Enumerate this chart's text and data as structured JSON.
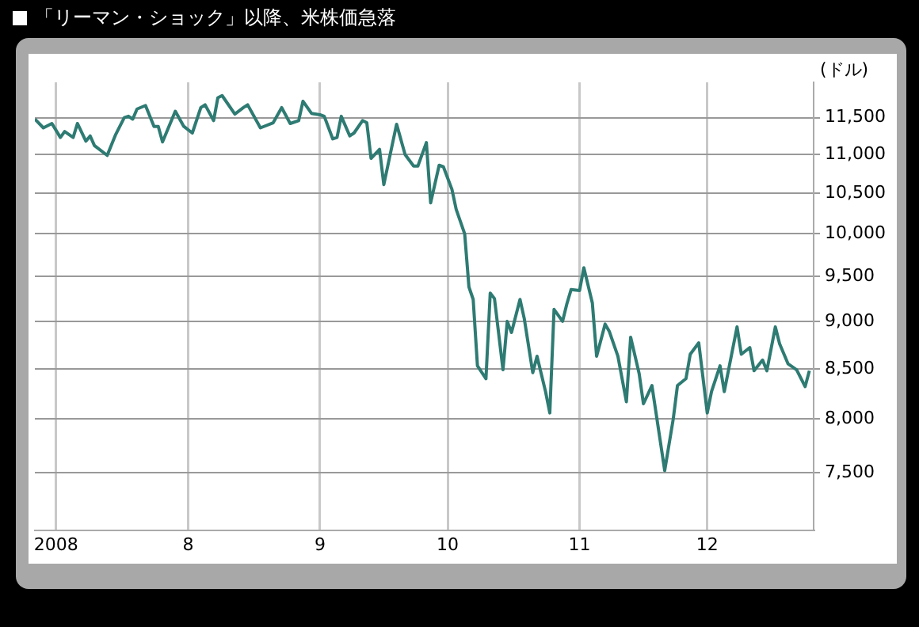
{
  "chart_data": {
    "type": "line",
    "title": "「リーマン・ショック」以降、米株価急落",
    "ylabel": "(ドル)",
    "x": [
      "2008-06-26",
      "2008-06-28",
      "2008-06-30",
      "2008-07-02",
      "2008-07-03",
      "2008-07-05",
      "2008-07-06",
      "2008-07-08",
      "2008-07-09",
      "2008-07-10",
      "2008-07-13",
      "2008-07-15",
      "2008-07-17",
      "2008-07-18",
      "2008-07-19",
      "2008-07-20",
      "2008-07-22",
      "2008-07-24",
      "2008-07-25",
      "2008-07-26",
      "2008-07-29",
      "2008-07-31",
      "2008-08-02",
      "2008-08-04",
      "2008-08-05",
      "2008-08-07",
      "2008-08-08",
      "2008-08-09",
      "2008-08-12",
      "2008-08-14",
      "2008-08-15",
      "2008-08-18",
      "2008-08-21",
      "2008-08-23",
      "2008-08-25",
      "2008-08-27",
      "2008-08-28",
      "2008-08-30",
      "2008-09-01",
      "2008-09-02",
      "2008-09-04",
      "2008-09-05",
      "2008-09-06",
      "2008-09-08",
      "2008-09-09",
      "2008-09-11",
      "2008-09-12",
      "2008-09-13",
      "2008-09-15",
      "2008-09-16",
      "2008-09-19",
      "2008-09-21",
      "2008-09-23",
      "2008-09-24",
      "2008-09-26",
      "2008-09-27",
      "2008-09-29",
      "2008-09-30",
      "2008-10-02",
      "2008-10-03",
      "2008-10-05",
      "2008-10-06",
      "2008-10-07",
      "2008-10-08",
      "2008-10-10",
      "2008-10-11",
      "2008-10-12",
      "2008-10-14",
      "2008-10-15",
      "2008-10-16",
      "2008-10-18",
      "2008-10-19",
      "2008-10-21",
      "2008-10-22",
      "2008-10-24",
      "2008-10-25",
      "2008-10-26",
      "2008-10-28",
      "2008-10-29",
      "2008-10-30",
      "2008-11-01",
      "2008-11-02",
      "2008-11-04",
      "2008-11-05",
      "2008-11-07",
      "2008-11-08",
      "2008-11-10",
      "2008-11-12",
      "2008-11-13",
      "2008-11-15",
      "2008-11-16",
      "2008-11-18",
      "2008-11-21",
      "2008-11-23",
      "2008-11-24",
      "2008-11-26",
      "2008-11-27",
      "2008-11-29",
      "2008-12-01",
      "2008-12-02",
      "2008-12-04",
      "2008-12-05",
      "2008-12-08",
      "2008-12-09",
      "2008-12-11",
      "2008-12-12",
      "2008-12-14",
      "2008-12-15",
      "2008-12-17",
      "2008-12-18",
      "2008-12-20",
      "2008-12-22",
      "2008-12-24",
      "2008-12-25"
    ],
    "series": [
      {
        "color": "#2e7b73",
        "values": [
          11480,
          11360,
          11420,
          11230,
          11310,
          11230,
          11420,
          11180,
          11250,
          11120,
          10990,
          11270,
          11500,
          11520,
          11480,
          11620,
          11670,
          11380,
          11380,
          11170,
          11590,
          11380,
          11290,
          11640,
          11680,
          11460,
          11780,
          11810,
          11550,
          11640,
          11680,
          11360,
          11430,
          11640,
          11420,
          11460,
          11730,
          11560,
          11540,
          11520,
          11210,
          11230,
          11520,
          11250,
          11290,
          11460,
          11430,
          10950,
          11070,
          10610,
          11410,
          11000,
          10850,
          10850,
          11160,
          10380,
          10860,
          10840,
          10550,
          10300,
          10000,
          9380,
          9240,
          8530,
          8400,
          9310,
          9250,
          8490,
          9000,
          8880,
          9240,
          9030,
          8460,
          8630,
          8270,
          8060,
          9130,
          9000,
          9190,
          9350,
          9340,
          9600,
          9200,
          8630,
          8970,
          8890,
          8630,
          8170,
          8830,
          8450,
          8150,
          8330,
          7520,
          8000,
          8330,
          8400,
          8650,
          8770,
          8060,
          8270,
          8530,
          8270,
          8940,
          8650,
          8720,
          8480,
          8590,
          8480,
          8940,
          8760,
          8550,
          8490,
          8320,
          8480
        ]
      }
    ],
    "xlim": [
      "2008-06-26",
      "2008-12-26"
    ],
    "xticks": [
      {
        "value": "2008-07-01",
        "label": "2008"
      },
      {
        "value": "2008-08-01",
        "label": "8"
      },
      {
        "value": "2008-09-01",
        "label": "9"
      },
      {
        "value": "2008-10-01",
        "label": "10"
      },
      {
        "value": "2008-11-01",
        "label": "11"
      },
      {
        "value": "2008-12-01",
        "label": "12"
      }
    ],
    "ylim": [
      7000,
      12000
    ],
    "yticks": [
      {
        "value": 7500,
        "label": "7,500"
      },
      {
        "value": 8000,
        "label": "8,000"
      },
      {
        "value": 8500,
        "label": "8,500"
      },
      {
        "value": 9000,
        "label": "9,000"
      },
      {
        "value": 9500,
        "label": "9,500"
      },
      {
        "value": 10000,
        "label": "10,000"
      },
      {
        "value": 10500,
        "label": "10,500"
      },
      {
        "value": 11000,
        "label": "11,000"
      },
      {
        "value": 11500,
        "label": "11,500"
      }
    ],
    "log": "y",
    "grid": true,
    "marker": "none",
    "line_style": "solid",
    "legend": false
  }
}
